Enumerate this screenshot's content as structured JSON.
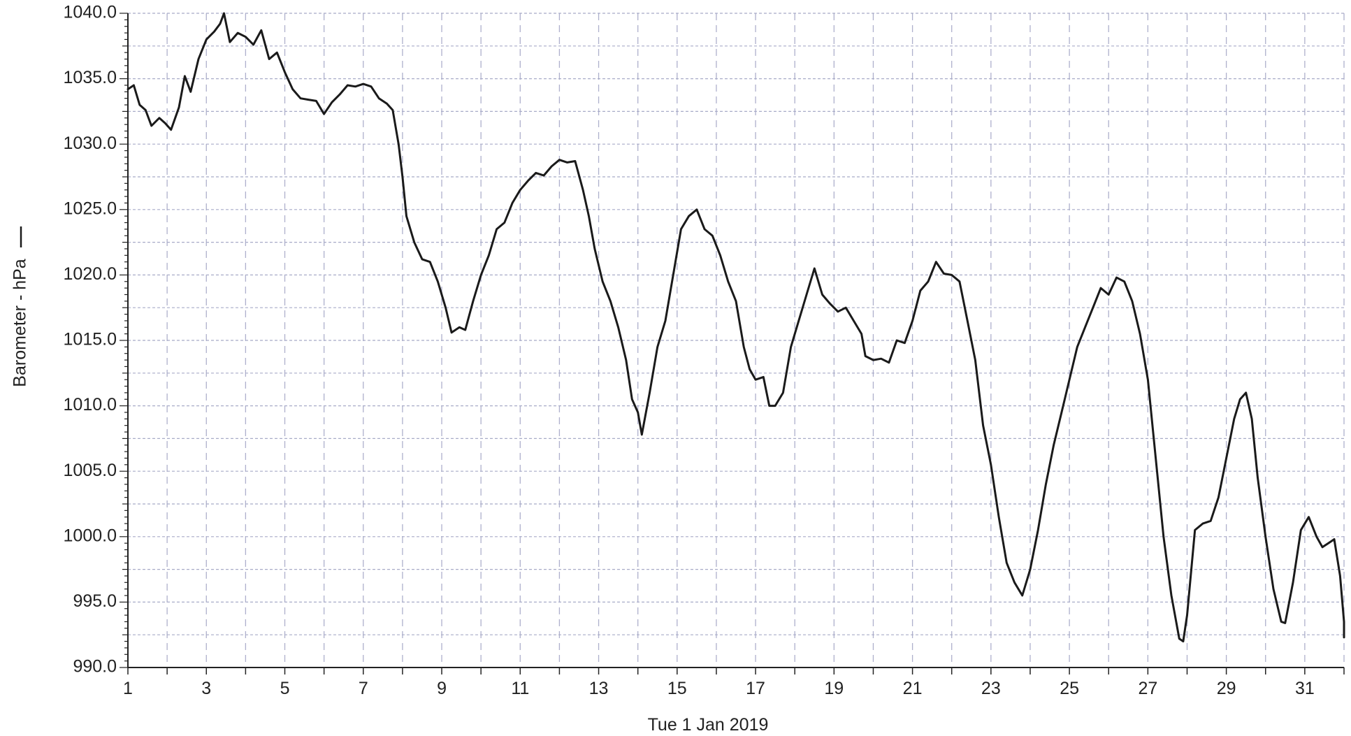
{
  "chart_data": {
    "type": "line",
    "title": "",
    "xlabel": "Tue 1 Jan 2019",
    "ylabel": "Barometer - hPa",
    "legend_marker": "line",
    "xlim": [
      1,
      32
    ],
    "ylim": [
      990,
      1040
    ],
    "x_ticks": [
      1,
      3,
      5,
      7,
      9,
      11,
      13,
      15,
      17,
      19,
      21,
      23,
      25,
      27,
      29,
      31
    ],
    "x_tick_labels": [
      "1",
      "3",
      "5",
      "7",
      "9",
      "11",
      "13",
      "15",
      "17",
      "19",
      "21",
      "23",
      "25",
      "27",
      "29",
      "31"
    ],
    "y_ticks": [
      990,
      995,
      1000,
      1005,
      1010,
      1015,
      1020,
      1025,
      1030,
      1035,
      1040
    ],
    "y_tick_labels": [
      "990.0",
      "995.0",
      "1000.0",
      "1005.0",
      "1010.0",
      "1015.0",
      "1020.0",
      "1025.0",
      "1030.0",
      "1035.0",
      "1040.0"
    ],
    "grid": true,
    "colors": {
      "line": "#1a1a1a",
      "grid_horizontal": "#a8abc8",
      "grid_vertical": "#aeb0cc",
      "axis": "#222222"
    },
    "series": [
      {
        "values": [
          [
            1.0,
            1034.2
          ],
          [
            1.15,
            1034.5
          ],
          [
            1.3,
            1033.0
          ],
          [
            1.45,
            1032.6
          ],
          [
            1.6,
            1031.4
          ],
          [
            1.8,
            1032.0
          ],
          [
            1.95,
            1031.6
          ],
          [
            2.1,
            1031.1
          ],
          [
            2.3,
            1032.8
          ],
          [
            2.45,
            1035.2
          ],
          [
            2.6,
            1034.0
          ],
          [
            2.8,
            1036.5
          ],
          [
            3.0,
            1038.0
          ],
          [
            3.2,
            1038.6
          ],
          [
            3.35,
            1039.2
          ],
          [
            3.45,
            1040.0
          ],
          [
            3.6,
            1037.8
          ],
          [
            3.8,
            1038.5
          ],
          [
            4.0,
            1038.2
          ],
          [
            4.2,
            1037.6
          ],
          [
            4.4,
            1038.7
          ],
          [
            4.6,
            1036.5
          ],
          [
            4.8,
            1037.0
          ],
          [
            5.0,
            1035.5
          ],
          [
            5.2,
            1034.2
          ],
          [
            5.4,
            1033.5
          ],
          [
            5.6,
            1033.4
          ],
          [
            5.8,
            1033.3
          ],
          [
            6.0,
            1032.3
          ],
          [
            6.2,
            1033.2
          ],
          [
            6.4,
            1033.8
          ],
          [
            6.6,
            1034.5
          ],
          [
            6.8,
            1034.4
          ],
          [
            7.0,
            1034.6
          ],
          [
            7.2,
            1034.4
          ],
          [
            7.4,
            1033.5
          ],
          [
            7.6,
            1033.1
          ],
          [
            7.75,
            1032.6
          ],
          [
            7.9,
            1030.0
          ],
          [
            8.0,
            1027.5
          ],
          [
            8.1,
            1024.5
          ],
          [
            8.3,
            1022.5
          ],
          [
            8.5,
            1021.2
          ],
          [
            8.7,
            1021.0
          ],
          [
            8.9,
            1019.5
          ],
          [
            9.1,
            1017.5
          ],
          [
            9.25,
            1015.6
          ],
          [
            9.45,
            1016.0
          ],
          [
            9.6,
            1015.8
          ],
          [
            9.8,
            1018.0
          ],
          [
            10.0,
            1020.0
          ],
          [
            10.2,
            1021.5
          ],
          [
            10.4,
            1023.5
          ],
          [
            10.6,
            1024.0
          ],
          [
            10.8,
            1025.5
          ],
          [
            11.0,
            1026.5
          ],
          [
            11.2,
            1027.2
          ],
          [
            11.4,
            1027.8
          ],
          [
            11.6,
            1027.6
          ],
          [
            11.8,
            1028.3
          ],
          [
            12.0,
            1028.8
          ],
          [
            12.2,
            1028.6
          ],
          [
            12.4,
            1028.7
          ],
          [
            12.6,
            1026.5
          ],
          [
            12.75,
            1024.5
          ],
          [
            12.9,
            1022.0
          ],
          [
            13.1,
            1019.5
          ],
          [
            13.3,
            1018.0
          ],
          [
            13.5,
            1016.0
          ],
          [
            13.7,
            1013.5
          ],
          [
            13.85,
            1010.5
          ],
          [
            14.0,
            1009.5
          ],
          [
            14.1,
            1007.8
          ],
          [
            14.3,
            1011.0
          ],
          [
            14.5,
            1014.5
          ],
          [
            14.7,
            1016.5
          ],
          [
            14.9,
            1020.0
          ],
          [
            15.1,
            1023.5
          ],
          [
            15.3,
            1024.5
          ],
          [
            15.5,
            1025.0
          ],
          [
            15.7,
            1023.5
          ],
          [
            15.9,
            1023.0
          ],
          [
            16.1,
            1021.5
          ],
          [
            16.3,
            1019.5
          ],
          [
            16.5,
            1018.0
          ],
          [
            16.7,
            1014.5
          ],
          [
            16.85,
            1012.8
          ],
          [
            17.0,
            1012.0
          ],
          [
            17.2,
            1012.2
          ],
          [
            17.35,
            1010.0
          ],
          [
            17.5,
            1010.0
          ],
          [
            17.7,
            1011.0
          ],
          [
            17.9,
            1014.5
          ],
          [
            18.1,
            1016.5
          ],
          [
            18.3,
            1018.5
          ],
          [
            18.5,
            1020.5
          ],
          [
            18.7,
            1018.5
          ],
          [
            18.9,
            1017.8
          ],
          [
            19.1,
            1017.2
          ],
          [
            19.3,
            1017.5
          ],
          [
            19.5,
            1016.5
          ],
          [
            19.7,
            1015.5
          ],
          [
            19.8,
            1013.8
          ],
          [
            20.0,
            1013.5
          ],
          [
            20.2,
            1013.6
          ],
          [
            20.4,
            1013.3
          ],
          [
            20.6,
            1015.0
          ],
          [
            20.8,
            1014.8
          ],
          [
            21.0,
            1016.5
          ],
          [
            21.2,
            1018.8
          ],
          [
            21.4,
            1019.5
          ],
          [
            21.6,
            1021.0
          ],
          [
            21.8,
            1020.1
          ],
          [
            22.0,
            1020.0
          ],
          [
            22.2,
            1019.5
          ],
          [
            22.4,
            1016.5
          ],
          [
            22.6,
            1013.5
          ],
          [
            22.8,
            1008.5
          ],
          [
            23.0,
            1005.5
          ],
          [
            23.2,
            1001.5
          ],
          [
            23.4,
            998.0
          ],
          [
            23.6,
            996.5
          ],
          [
            23.8,
            995.5
          ],
          [
            24.0,
            997.5
          ],
          [
            24.2,
            1000.5
          ],
          [
            24.4,
            1004.0
          ],
          [
            24.6,
            1007.0
          ],
          [
            24.8,
            1009.5
          ],
          [
            25.0,
            1012.0
          ],
          [
            25.2,
            1014.5
          ],
          [
            25.4,
            1016.0
          ],
          [
            25.6,
            1017.5
          ],
          [
            25.8,
            1019.0
          ],
          [
            26.0,
            1018.5
          ],
          [
            26.2,
            1019.8
          ],
          [
            26.4,
            1019.5
          ],
          [
            26.6,
            1018.0
          ],
          [
            26.8,
            1015.5
          ],
          [
            27.0,
            1012.0
          ],
          [
            27.2,
            1006.0
          ],
          [
            27.4,
            1000.0
          ],
          [
            27.6,
            995.5
          ],
          [
            27.8,
            992.2
          ],
          [
            27.9,
            992.0
          ],
          [
            28.0,
            994.0
          ],
          [
            28.2,
            1000.5
          ],
          [
            28.4,
            1001.0
          ],
          [
            28.6,
            1001.2
          ],
          [
            28.8,
            1003.0
          ],
          [
            29.0,
            1006.0
          ],
          [
            29.2,
            1009.0
          ],
          [
            29.35,
            1010.5
          ],
          [
            29.5,
            1011.0
          ],
          [
            29.65,
            1009.0
          ],
          [
            29.8,
            1004.5
          ],
          [
            30.0,
            1000.0
          ],
          [
            30.2,
            996.0
          ],
          [
            30.4,
            993.5
          ],
          [
            30.5,
            993.4
          ],
          [
            30.7,
            996.5
          ],
          [
            30.9,
            1000.5
          ],
          [
            31.1,
            1001.5
          ],
          [
            31.3,
            1000.0
          ],
          [
            31.45,
            999.2
          ],
          [
            31.6,
            999.5
          ],
          [
            31.75,
            999.8
          ],
          [
            31.9,
            997.0
          ],
          [
            32.1,
            993.5
          ],
          [
            32.3,
            992.3
          ]
        ]
      }
    ]
  }
}
